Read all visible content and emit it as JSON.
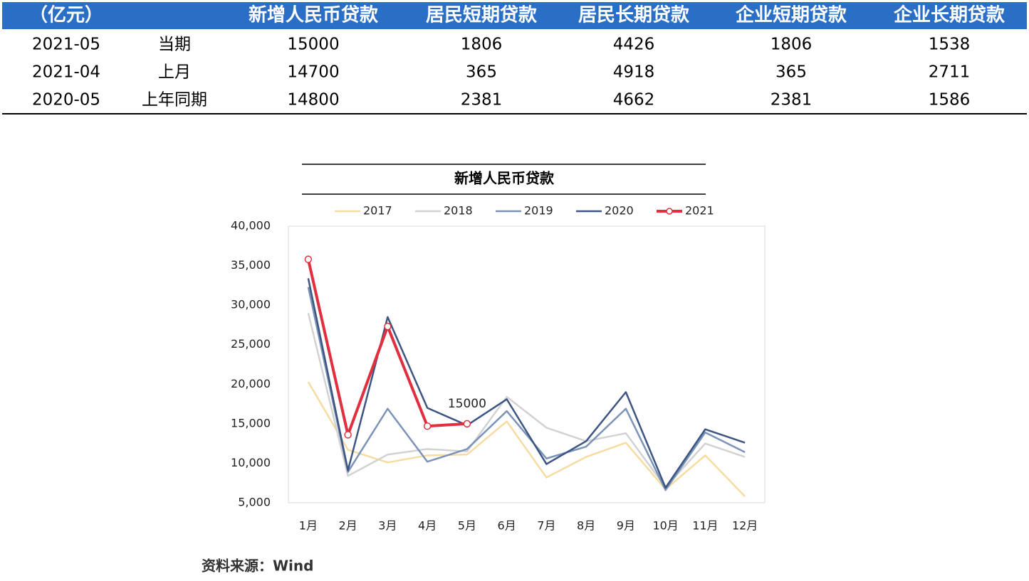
{
  "table": {
    "header": [
      "（亿元）",
      "新增人民币贷款",
      "居民短期贷款",
      "居民长期贷款",
      "企业短期贷款",
      "企业长期贷款"
    ],
    "rows": [
      [
        "2021-05",
        "当期",
        15000,
        1806,
        4426,
        1806,
        1538
      ],
      [
        "2021-04",
        "上月",
        14700,
        365,
        4918,
        365,
        2711
      ],
      [
        "2020-05",
        "上年同期",
        14800,
        2381,
        4662,
        2381,
        1586
      ]
    ]
  },
  "chart_data": {
    "type": "line",
    "title": "新增人民币贷款",
    "categories": [
      "1月",
      "2月",
      "3月",
      "4月",
      "5月",
      "6月",
      "7月",
      "8月",
      "9月",
      "10月",
      "11月",
      "12月"
    ],
    "series": [
      {
        "name": "2017",
        "color": "#f7dca2",
        "values": [
          20300,
          11700,
          10100,
          11000,
          11100,
          15300,
          8200,
          10800,
          12600,
          6700,
          11000,
          5800
        ]
      },
      {
        "name": "2018",
        "color": "#d2d2d2",
        "values": [
          29000,
          8400,
          11100,
          11800,
          11500,
          18400,
          14500,
          12800,
          13800,
          6970,
          12500,
          10800
        ]
      },
      {
        "name": "2019",
        "color": "#7b93b6",
        "values": [
          32300,
          8900,
          16900,
          10200,
          11800,
          16600,
          10600,
          12100,
          16900,
          6600,
          13900,
          11400
        ]
      },
      {
        "name": "2020",
        "color": "#3d5582",
        "values": [
          33400,
          9100,
          28500,
          17000,
          14800,
          18100,
          9900,
          12800,
          19000,
          6900,
          14300,
          12600
        ]
      },
      {
        "name": "2021",
        "color": "#e0303f",
        "markers": true,
        "values": [
          35800,
          13600,
          27300,
          14700,
          15000,
          null,
          null,
          null,
          null,
          null,
          null,
          null
        ],
        "value_labels": [
          null,
          null,
          null,
          null,
          "15000",
          null,
          null,
          null,
          null,
          null,
          null,
          null
        ]
      }
    ],
    "ylim": [
      5000,
      40000
    ],
    "yticks": [
      {
        "value": 5000,
        "label": "5,000"
      },
      {
        "value": 10000,
        "label": "10,000"
      },
      {
        "value": 15000,
        "label": "15,000"
      },
      {
        "value": 20000,
        "label": "20,000"
      },
      {
        "value": 25000,
        "label": "25,000"
      },
      {
        "value": 30000,
        "label": "30,000"
      },
      {
        "value": 35000,
        "label": "35,000"
      },
      {
        "value": 40000,
        "label": "40,000"
      }
    ],
    "grid": false,
    "legend": "top"
  },
  "source": "资料来源：Wind"
}
